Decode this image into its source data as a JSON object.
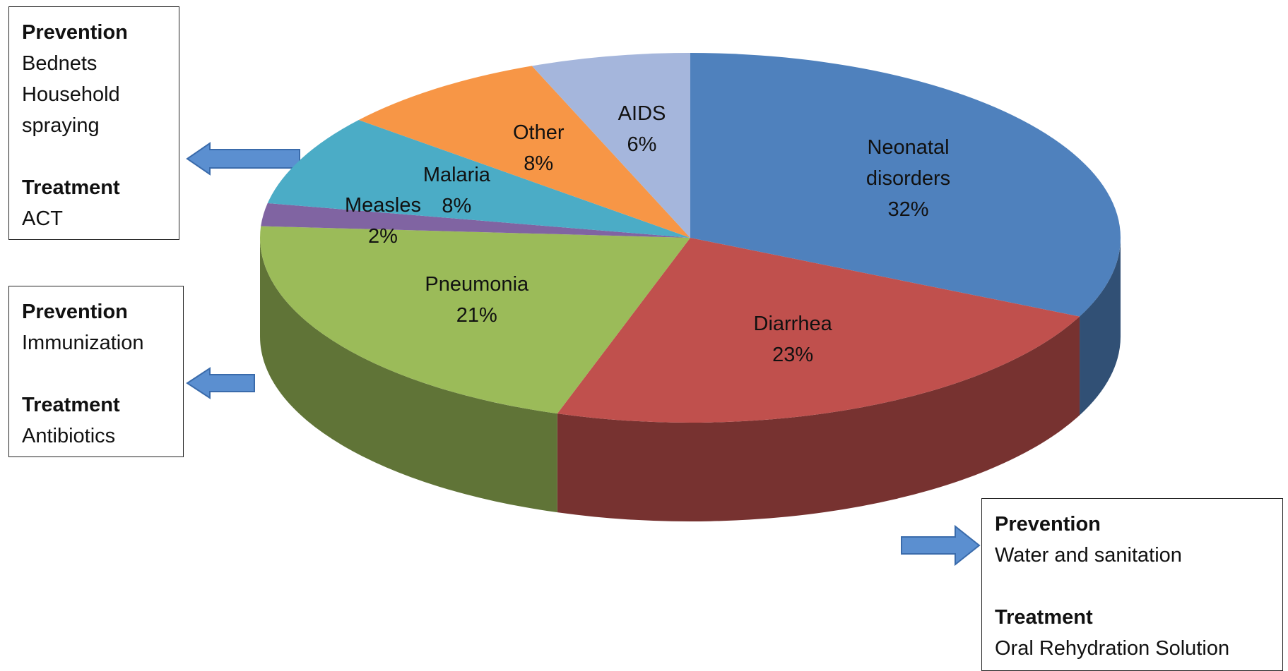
{
  "chart_data": {
    "type": "pie",
    "categories": [
      "Neonatal disorders",
      "Diarrhea",
      "Pneumonia",
      "Measles",
      "Malaria",
      "Other",
      "AIDS"
    ],
    "values": [
      32,
      23,
      21,
      2,
      8,
      8,
      6
    ],
    "value_labels": [
      "32%",
      "23%",
      "21%",
      "2%",
      "8%",
      "8%",
      "6%"
    ],
    "colors": [
      "#4f81bd",
      "#c0504d",
      "#9bbb59",
      "#8064a2",
      "#4bacc6",
      "#f79646",
      "#a5b6dc"
    ],
    "annotations": [
      {
        "items": [
          {
            "heading": "Prevention",
            "lines": [
              "Bednets",
              "Household spraying"
            ]
          },
          {
            "heading": "Treatment",
            "lines": [
              "ACT"
            ]
          }
        ]
      },
      {
        "items": [
          {
            "heading": "Prevention",
            "lines": [
              "Immunization"
            ]
          },
          {
            "heading": "Treatment",
            "lines": [
              "Antibiotics"
            ]
          }
        ]
      },
      {
        "items": [
          {
            "heading": "Prevention",
            "lines": [
              "Water and sanitation"
            ]
          },
          {
            "heading": "Treatment",
            "lines": [
              "Oral Rehydration Solution"
            ]
          }
        ]
      }
    ]
  }
}
